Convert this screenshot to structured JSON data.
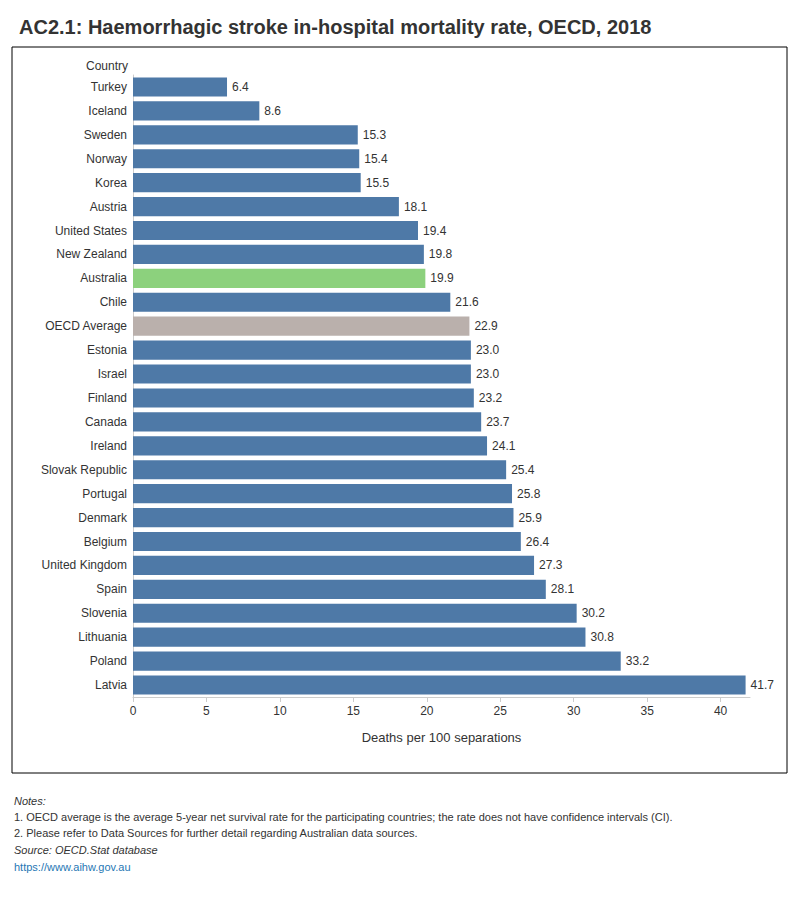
{
  "chart_data": {
    "type": "bar",
    "orientation": "horizontal",
    "title": "AC2.1: Haemorrhagic stroke in-hospital mortality rate, OECD, 2018",
    "x_label": "Deaths per 100 separations",
    "y_label": "Country",
    "categories": [
      "Turkey",
      "Iceland",
      "Sweden",
      "Norway",
      "Korea",
      "Austria",
      "United States",
      "New Zealand",
      "Australia",
      "Chile",
      "OECD Average",
      "Estonia",
      "Israel",
      "Finland",
      "Canada",
      "Ireland",
      "Slovak Republic",
      "Portugal",
      "Denmark",
      "Belgium",
      "United Kingdom",
      "Spain",
      "Slovenia",
      "Lithuania",
      "Poland",
      "Latvia"
    ],
    "values": [
      6.4,
      8.6,
      15.3,
      15.4,
      15.5,
      18.1,
      19.4,
      19.8,
      19.9,
      21.6,
      22.9,
      23.0,
      23.0,
      23.2,
      23.7,
      24.1,
      25.4,
      25.8,
      25.9,
      26.4,
      27.3,
      28.1,
      30.2,
      30.8,
      33.2,
      41.7
    ],
    "value_labels": [
      "6.4",
      "8.6",
      "15.3",
      "15.4",
      "15.5",
      "18.1",
      "19.4",
      "19.8",
      "19.9",
      "21.6",
      "22.9",
      "23.0",
      "23.0",
      "23.2",
      "23.7",
      "24.1",
      "25.4",
      "25.8",
      "25.9",
      "26.4",
      "27.3",
      "28.1",
      "30.2",
      "30.8",
      "33.2",
      "41.7"
    ],
    "colors": [
      "#4e79a7",
      "#4e79a7",
      "#4e79a7",
      "#4e79a7",
      "#4e79a7",
      "#4e79a7",
      "#4e79a7",
      "#4e79a7",
      "#8cd17d",
      "#4e79a7",
      "#bab0ac",
      "#4e79a7",
      "#4e79a7",
      "#4e79a7",
      "#4e79a7",
      "#4e79a7",
      "#4e79a7",
      "#4e79a7",
      "#4e79a7",
      "#4e79a7",
      "#4e79a7",
      "#4e79a7",
      "#4e79a7",
      "#4e79a7",
      "#4e79a7",
      "#4e79a7"
    ],
    "xlim": [
      0,
      42
    ],
    "xticks": [
      0,
      5,
      10,
      15,
      20,
      25,
      30,
      35,
      40
    ],
    "grid": false,
    "data_labels": true,
    "notes_title": "Notes:",
    "notes": [
      "1. OECD average is the average 5-year net survival rate for the participating countries; the rate does not have confidence intervals (CI).",
      "2. Please refer to Data Sources for further detail regarding Australian data sources."
    ],
    "source": "Source: OECD.Stat database",
    "url": "https://www.aihw.gov.au"
  }
}
